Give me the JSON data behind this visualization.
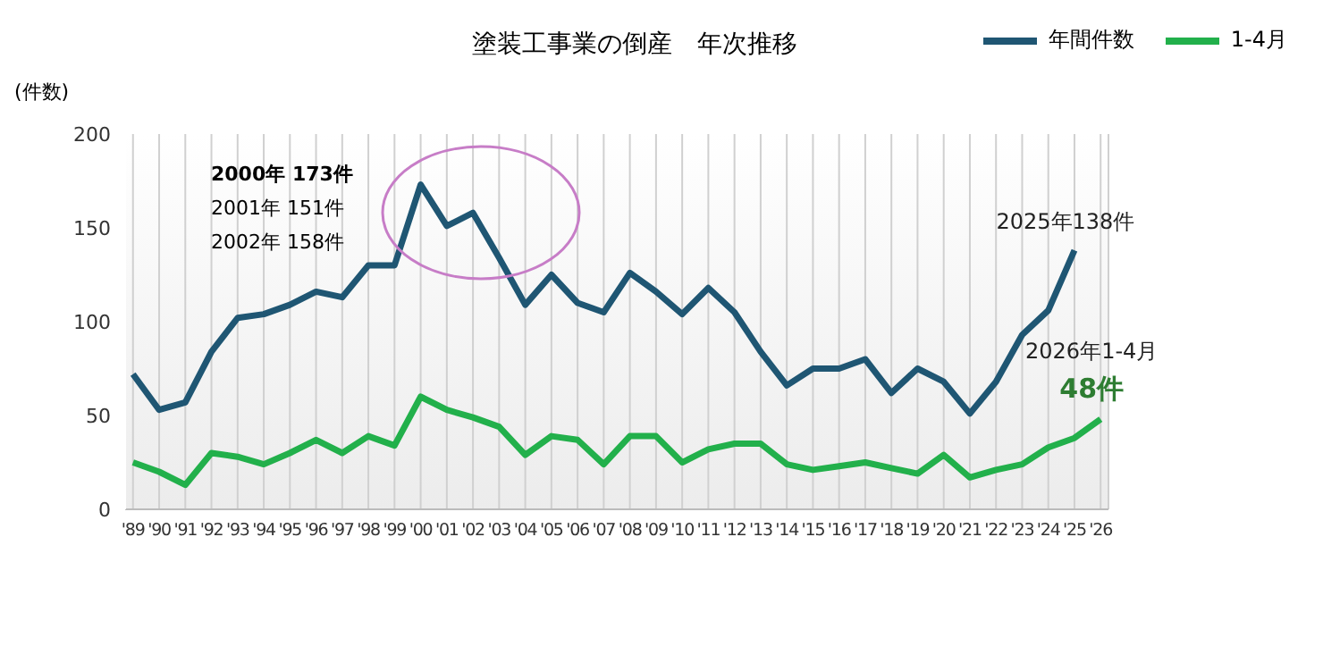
{
  "chart_data": {
    "type": "line",
    "title": "塗装工事業の倒産　年次推移",
    "ylabel": "(件数)",
    "categories": [
      "'89",
      "'90",
      "'91",
      "'92",
      "'93",
      "'94",
      "'95",
      "'96",
      "'97",
      "'98",
      "'99",
      "'00",
      "'01",
      "'02",
      "'03",
      "'04",
      "'05",
      "'06",
      "'07",
      "'08",
      "'09",
      "'10",
      "'11",
      "'12",
      "'13",
      "'14",
      "'15",
      "'16",
      "'17",
      "'18",
      "'19",
      "'20",
      "'21",
      "'22",
      "'23",
      "'24",
      "'25",
      "'26"
    ],
    "series": [
      {
        "name": "年間件数",
        "color": "#1f5673",
        "values": [
          72,
          53,
          57,
          84,
          102,
          104,
          109,
          116,
          113,
          130,
          130,
          173,
          151,
          158,
          134,
          109,
          125,
          110,
          105,
          126,
          116,
          104,
          118,
          105,
          84,
          66,
          75,
          75,
          80,
          62,
          75,
          68,
          51,
          68,
          93,
          106,
          138,
          null
        ]
      },
      {
        "name": "1-4月",
        "color": "#22b04b",
        "values": [
          25,
          20,
          13,
          30,
          28,
          24,
          30,
          37,
          30,
          39,
          34,
          60,
          53,
          49,
          44,
          29,
          39,
          37,
          24,
          39,
          39,
          25,
          32,
          35,
          35,
          24,
          21,
          23,
          25,
          22,
          19,
          29,
          17,
          21,
          24,
          33,
          38,
          48
        ]
      }
    ],
    "ylim": [
      0,
      200
    ],
    "yticks": [
      0,
      50,
      100,
      150,
      200
    ],
    "grid": "x",
    "legend": "top right",
    "marker": "none",
    "line_style": "solid",
    "annotations": [
      "2000年 173件",
      "2001年 151件",
      "2002年 158件",
      {
        "text": "2025年138件",
        "x": "'25",
        "y": 138
      },
      {
        "text": "2026年1-4月",
        "x": "'26",
        "y": 48
      },
      {
        "text": "48件",
        "x": "'26",
        "y": 48
      }
    ]
  }
}
